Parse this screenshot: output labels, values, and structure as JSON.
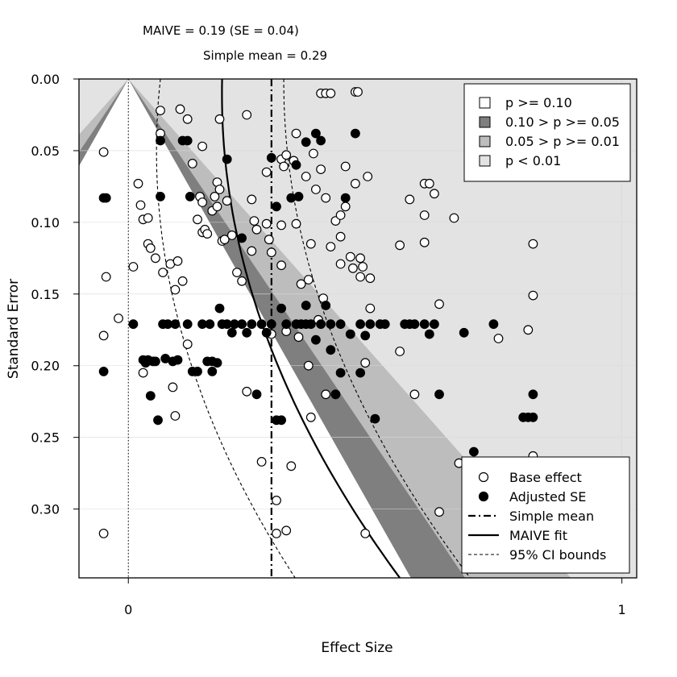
{
  "chart_data": {
    "type": "scatter",
    "title": "",
    "xlabel": "Effect Size",
    "ylabel": "Standard Error",
    "xlim": [
      -0.1,
      1.03
    ],
    "ylim": [
      0.0,
      0.348
    ],
    "y_reversed": true,
    "x_ticks": [
      "0",
      "1"
    ],
    "x_tick_values": [
      0,
      1
    ],
    "y_ticks": [
      "0.00",
      "0.05",
      "0.10",
      "0.15",
      "0.20",
      "0.25",
      "0.30"
    ],
    "y_tick_values": [
      0.0,
      0.05,
      0.1,
      0.15,
      0.2,
      0.25,
      0.3
    ],
    "grid": true,
    "annotations": {
      "maive": "MAIVE = 0.19 (SE = 0.04)",
      "simple_mean": "Simple mean = 0.29"
    },
    "contour_legend": {
      "placement": "top-right",
      "items": [
        {
          "label": "p >= 0.10",
          "color": "#ffffff"
        },
        {
          "label": "0.10 > p >= 0.05",
          "color": "#7f7f7f"
        },
        {
          "label": "0.05 > p >= 0.01",
          "color": "#bdbdbd"
        },
        {
          "label": "p < 0.01",
          "color": "#e3e3e3"
        }
      ]
    },
    "series_legend": {
      "placement": "bottom-right",
      "items": [
        {
          "label": "Base effect",
          "kind": "open-circle"
        },
        {
          "label": "Adjusted SE",
          "kind": "filled-circle"
        },
        {
          "label": "Simple mean",
          "kind": "dashdot-line"
        },
        {
          "label": "MAIVE fit",
          "kind": "solid-line"
        },
        {
          "label": "95% CI bounds",
          "kind": "dashed-line"
        }
      ]
    },
    "colors": {
      "p_ge_010": "#ffffff",
      "p_010_005": "#7f7f7f",
      "p_005_001": "#bdbdbd",
      "p_lt_001": "#e3e3e3"
    },
    "simple_mean": 0.29,
    "maive_fit": {
      "x_at_se_0": 0.19,
      "x_at_se_0.17": 0.27,
      "x_at_se_0.348": 0.55
    },
    "series": [
      {
        "name": "Base effect",
        "marker": "open",
        "points": [
          [
            -0.05,
            0.051
          ],
          [
            -0.05,
            0.179
          ],
          [
            -0.05,
            0.317
          ],
          [
            -0.045,
            0.138
          ],
          [
            -0.02,
            0.167
          ],
          [
            0.01,
            0.131
          ],
          [
            0.02,
            0.073
          ],
          [
            0.03,
            0.205
          ],
          [
            0.025,
            0.088
          ],
          [
            0.03,
            0.098
          ],
          [
            0.04,
            0.097
          ],
          [
            0.04,
            0.115
          ],
          [
            0.045,
            0.118
          ],
          [
            0.055,
            0.125
          ],
          [
            0.065,
            0.022
          ],
          [
            0.065,
            0.038
          ],
          [
            0.07,
            0.135
          ],
          [
            0.085,
            0.129
          ],
          [
            0.09,
            0.215
          ],
          [
            0.095,
            0.235
          ],
          [
            0.095,
            0.147
          ],
          [
            0.1,
            0.127
          ],
          [
            0.105,
            0.021
          ],
          [
            0.11,
            0.141
          ],
          [
            0.12,
            0.028
          ],
          [
            0.12,
            0.185
          ],
          [
            0.15,
            0.047
          ],
          [
            0.13,
            0.059
          ],
          [
            0.14,
            0.098
          ],
          [
            0.145,
            0.082
          ],
          [
            0.15,
            0.086
          ],
          [
            0.15,
            0.107
          ],
          [
            0.155,
            0.105
          ],
          [
            0.16,
            0.108
          ],
          [
            0.17,
            0.092
          ],
          [
            0.175,
            0.082
          ],
          [
            0.18,
            0.089
          ],
          [
            0.18,
            0.072
          ],
          [
            0.185,
            0.077
          ],
          [
            0.19,
            0.113
          ],
          [
            0.185,
            0.028
          ],
          [
            0.195,
            0.112
          ],
          [
            0.2,
            0.085
          ],
          [
            0.21,
            0.109
          ],
          [
            0.22,
            0.135
          ],
          [
            0.23,
            0.141
          ],
          [
            0.24,
            0.025
          ],
          [
            0.24,
            0.218
          ],
          [
            0.25,
            0.084
          ],
          [
            0.255,
            0.099
          ],
          [
            0.25,
            0.12
          ],
          [
            0.26,
            0.105
          ],
          [
            0.27,
            0.267
          ],
          [
            0.28,
            0.065
          ],
          [
            0.28,
            0.101
          ],
          [
            0.285,
            0.112
          ],
          [
            0.29,
            0.121
          ],
          [
            0.29,
            0.178
          ],
          [
            0.3,
            0.294
          ],
          [
            0.3,
            0.317
          ],
          [
            0.31,
            0.102
          ],
          [
            0.31,
            0.056
          ],
          [
            0.31,
            0.13
          ],
          [
            0.315,
            0.061
          ],
          [
            0.32,
            0.053
          ],
          [
            0.32,
            0.176
          ],
          [
            0.32,
            0.315
          ],
          [
            0.33,
            0.27
          ],
          [
            0.335,
            0.057
          ],
          [
            0.34,
            0.038
          ],
          [
            0.34,
            0.101
          ],
          [
            0.345,
            0.18
          ],
          [
            0.35,
            0.143
          ],
          [
            0.36,
            0.068
          ],
          [
            0.365,
            0.2
          ],
          [
            0.365,
            0.14
          ],
          [
            0.37,
            0.236
          ],
          [
            0.37,
            0.115
          ],
          [
            0.375,
            0.052
          ],
          [
            0.38,
            0.077
          ],
          [
            0.385,
            0.168
          ],
          [
            0.39,
            0.01
          ],
          [
            0.4,
            0.01
          ],
          [
            0.41,
            0.01
          ],
          [
            0.39,
            0.063
          ],
          [
            0.4,
            0.083
          ],
          [
            0.395,
            0.153
          ],
          [
            0.4,
            0.22
          ],
          [
            0.41,
            0.117
          ],
          [
            0.42,
            0.22
          ],
          [
            0.42,
            0.099
          ],
          [
            0.43,
            0.11
          ],
          [
            0.43,
            0.095
          ],
          [
            0.43,
            0.129
          ],
          [
            0.44,
            0.061
          ],
          [
            0.44,
            0.089
          ],
          [
            0.45,
            0.124
          ],
          [
            0.455,
            0.132
          ],
          [
            0.46,
            0.073
          ],
          [
            0.46,
            0.009
          ],
          [
            0.465,
            0.009
          ],
          [
            0.47,
            0.125
          ],
          [
            0.47,
            0.138
          ],
          [
            0.475,
            0.131
          ],
          [
            0.48,
            0.198
          ],
          [
            0.48,
            0.317
          ],
          [
            0.485,
            0.068
          ],
          [
            0.49,
            0.16
          ],
          [
            0.49,
            0.139
          ],
          [
            0.55,
            0.116
          ],
          [
            0.55,
            0.19
          ],
          [
            0.57,
            0.084
          ],
          [
            0.58,
            0.22
          ],
          [
            0.6,
            0.073
          ],
          [
            0.6,
            0.095
          ],
          [
            0.6,
            0.114
          ],
          [
            0.61,
            0.073
          ],
          [
            0.62,
            0.08
          ],
          [
            0.63,
            0.302
          ],
          [
            0.63,
            0.157
          ],
          [
            0.66,
            0.097
          ],
          [
            0.67,
            0.268
          ],
          [
            0.75,
            0.181
          ],
          [
            0.81,
            0.175
          ],
          [
            0.82,
            0.263
          ],
          [
            0.82,
            0.151
          ],
          [
            0.82,
            0.115
          ]
        ]
      },
      {
        "name": "Adjusted SE",
        "marker": "filled",
        "points": [
          [
            -0.05,
            0.083
          ],
          [
            -0.05,
            0.204
          ],
          [
            -0.045,
            0.083
          ],
          [
            0.01,
            0.171
          ],
          [
            0.03,
            0.196
          ],
          [
            0.035,
            0.198
          ],
          [
            0.04,
            0.196
          ],
          [
            0.045,
            0.221
          ],
          [
            0.05,
            0.197
          ],
          [
            0.055,
            0.197
          ],
          [
            0.06,
            0.238
          ],
          [
            0.065,
            0.043
          ],
          [
            0.065,
            0.082
          ],
          [
            0.07,
            0.171
          ],
          [
            0.075,
            0.195
          ],
          [
            0.08,
            0.171
          ],
          [
            0.09,
            0.197
          ],
          [
            0.095,
            0.171
          ],
          [
            0.1,
            0.196
          ],
          [
            0.11,
            0.043
          ],
          [
            0.12,
            0.043
          ],
          [
            0.12,
            0.171
          ],
          [
            0.125,
            0.082
          ],
          [
            0.13,
            0.204
          ],
          [
            0.14,
            0.204
          ],
          [
            0.15,
            0.171
          ],
          [
            0.16,
            0.197
          ],
          [
            0.165,
            0.171
          ],
          [
            0.17,
            0.204
          ],
          [
            0.17,
            0.197
          ],
          [
            0.18,
            0.198
          ],
          [
            0.185,
            0.16
          ],
          [
            0.19,
            0.171
          ],
          [
            0.2,
            0.056
          ],
          [
            0.2,
            0.171
          ],
          [
            0.21,
            0.177
          ],
          [
            0.215,
            0.171
          ],
          [
            0.23,
            0.171
          ],
          [
            0.23,
            0.111
          ],
          [
            0.24,
            0.177
          ],
          [
            0.25,
            0.171
          ],
          [
            0.26,
            0.22
          ],
          [
            0.27,
            0.171
          ],
          [
            0.28,
            0.177
          ],
          [
            0.29,
            0.171
          ],
          [
            0.3,
            0.238
          ],
          [
            0.31,
            0.238
          ],
          [
            0.29,
            0.055
          ],
          [
            0.3,
            0.089
          ],
          [
            0.31,
            0.16
          ],
          [
            0.32,
            0.171
          ],
          [
            0.33,
            0.083
          ],
          [
            0.34,
            0.171
          ],
          [
            0.34,
            0.06
          ],
          [
            0.345,
            0.082
          ],
          [
            0.35,
            0.171
          ],
          [
            0.36,
            0.171
          ],
          [
            0.36,
            0.044
          ],
          [
            0.36,
            0.158
          ],
          [
            0.37,
            0.171
          ],
          [
            0.38,
            0.038
          ],
          [
            0.38,
            0.182
          ],
          [
            0.39,
            0.043
          ],
          [
            0.39,
            0.171
          ],
          [
            0.4,
            0.158
          ],
          [
            0.41,
            0.171
          ],
          [
            0.41,
            0.189
          ],
          [
            0.42,
            0.22
          ],
          [
            0.43,
            0.171
          ],
          [
            0.43,
            0.205
          ],
          [
            0.44,
            0.083
          ],
          [
            0.45,
            0.178
          ],
          [
            0.46,
            0.038
          ],
          [
            0.47,
            0.171
          ],
          [
            0.47,
            0.205
          ],
          [
            0.48,
            0.179
          ],
          [
            0.49,
            0.171
          ],
          [
            0.5,
            0.237
          ],
          [
            0.51,
            0.171
          ],
          [
            0.52,
            0.171
          ],
          [
            0.56,
            0.171
          ],
          [
            0.57,
            0.171
          ],
          [
            0.58,
            0.171
          ],
          [
            0.6,
            0.171
          ],
          [
            0.61,
            0.178
          ],
          [
            0.62,
            0.171
          ],
          [
            0.63,
            0.22
          ],
          [
            0.68,
            0.177
          ],
          [
            0.7,
            0.26
          ],
          [
            0.74,
            0.171
          ],
          [
            0.8,
            0.236
          ],
          [
            0.81,
            0.236
          ],
          [
            0.82,
            0.22
          ],
          [
            0.82,
            0.236
          ]
        ]
      }
    ]
  }
}
